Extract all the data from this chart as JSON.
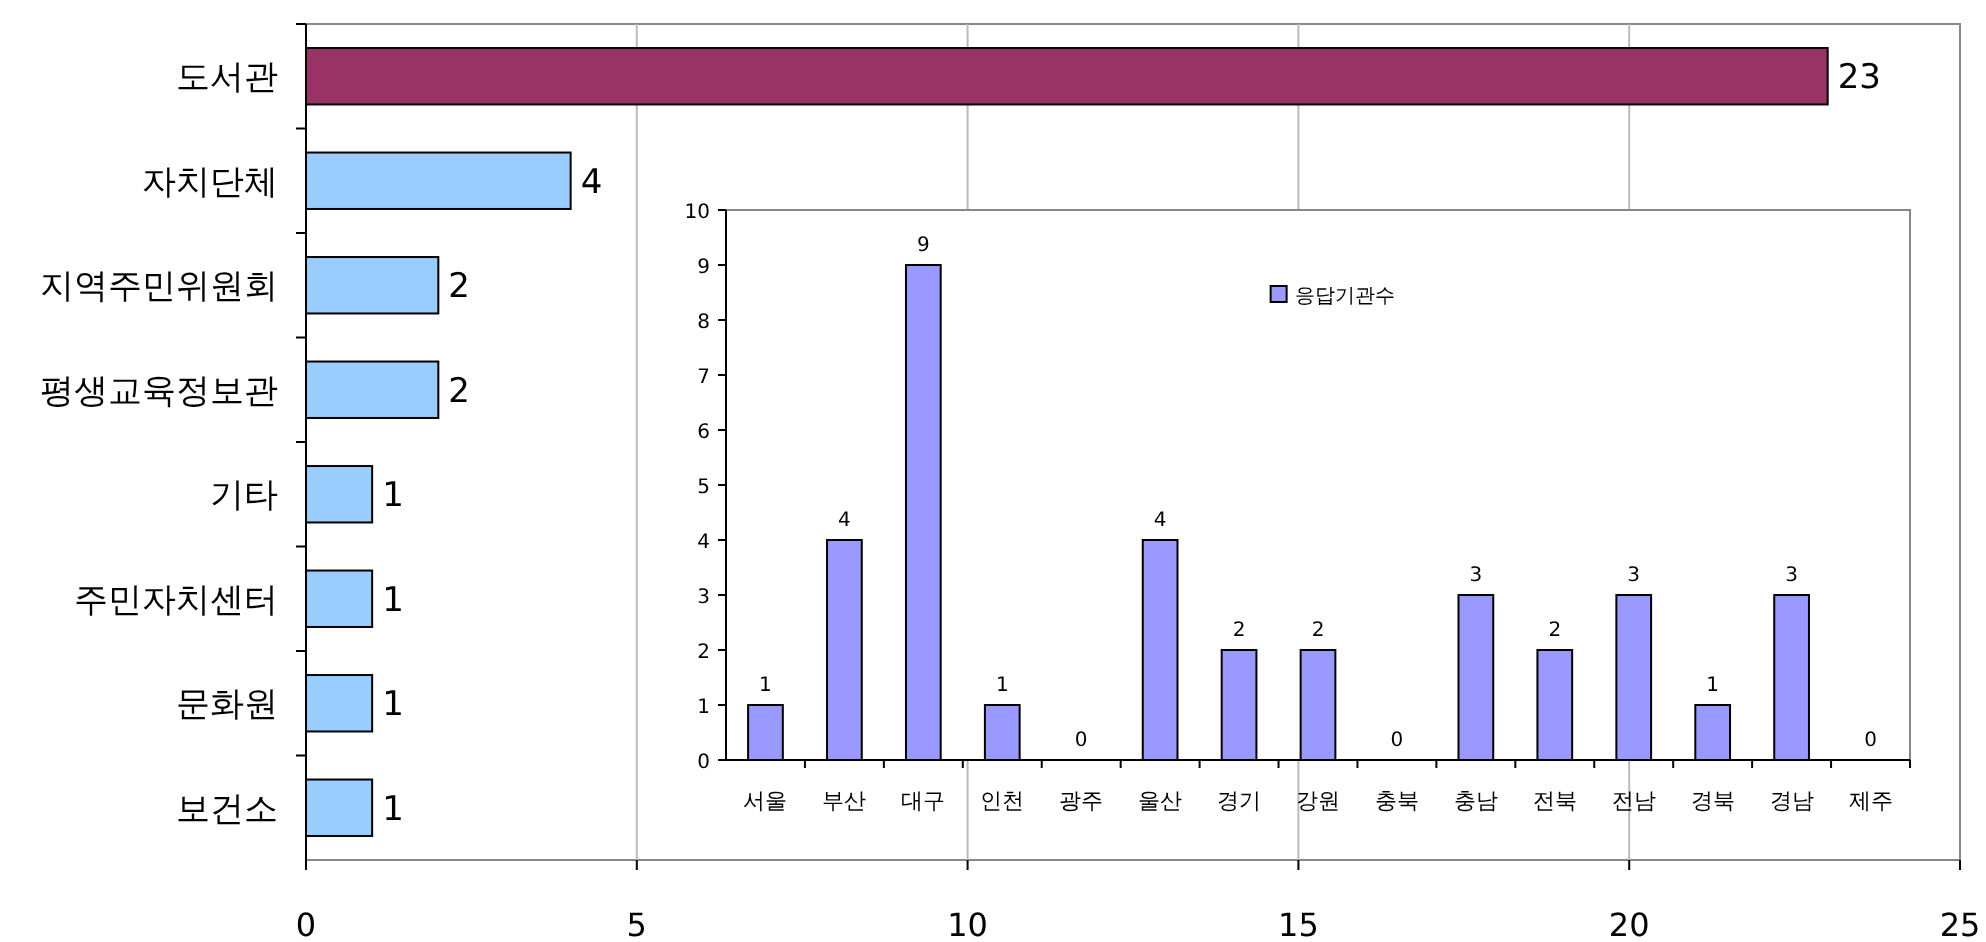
{
  "chart_data": [
    {
      "type": "bar",
      "orientation": "horizontal",
      "categories": [
        "도서관",
        "자치단체",
        "지역주민위원회",
        "평생교육정보관",
        "기타",
        "주민자치센터",
        "문화원",
        "보건소"
      ],
      "values": [
        23,
        4,
        2,
        2,
        1,
        1,
        1,
        1
      ],
      "colors": [
        "#993366",
        "#99ccff",
        "#99ccff",
        "#99ccff",
        "#99ccff",
        "#99ccff",
        "#99ccff",
        "#99ccff"
      ],
      "xlim": [
        0,
        25
      ],
      "xticks": [
        0,
        5,
        10,
        15,
        20,
        25
      ],
      "grid": "x",
      "data_labels": true
    },
    {
      "type": "bar",
      "categories": [
        "서울",
        "부산",
        "대구",
        "인천",
        "광주",
        "울산",
        "경기",
        "강원",
        "충북",
        "충남",
        "전북",
        "전남",
        "경북",
        "경남",
        "제주"
      ],
      "series": [
        {
          "name": "응답기관수",
          "color": "#9999ff",
          "values": [
            1,
            4,
            9,
            1,
            0,
            4,
            2,
            2,
            0,
            3,
            2,
            3,
            1,
            3,
            0
          ]
        }
      ],
      "ylim": [
        0,
        10
      ],
      "yticks": [
        0,
        1,
        2,
        3,
        4,
        5,
        6,
        7,
        8,
        9,
        10
      ],
      "legend": "top",
      "data_labels": true
    }
  ]
}
